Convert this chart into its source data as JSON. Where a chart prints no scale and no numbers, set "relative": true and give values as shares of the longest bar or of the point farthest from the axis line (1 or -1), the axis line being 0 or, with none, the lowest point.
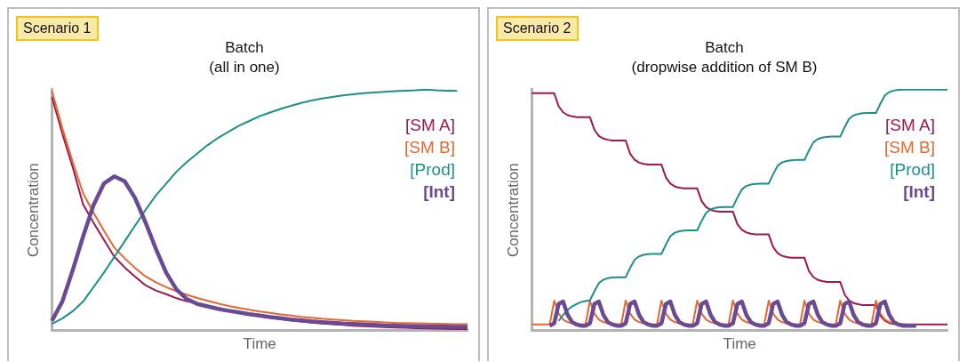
{
  "chart_data": [
    {
      "type": "line",
      "title": "Batch",
      "subtitle": "(all in one)",
      "xlabel": "Time",
      "ylabel": "Concentration",
      "annotations": [
        "Scenario 1"
      ],
      "relative": true,
      "legend": "right",
      "tick_labels": false,
      "marker": "none",
      "line_style": "solid",
      "categories": [
        null,
        null,
        null,
        null,
        null,
        null,
        null,
        null,
        null,
        null,
        null,
        null,
        null,
        null,
        null,
        null,
        null,
        null,
        null,
        null,
        null,
        null,
        null,
        null,
        null,
        null,
        null,
        null,
        null,
        null,
        null,
        null,
        null,
        null,
        null,
        null,
        null,
        null,
        null,
        null,
        null
      ],
      "series": [
        {
          "name": "[SM A]",
          "color": "#a0174a",
          "values": [
            0.97,
            0.818,
            0.678,
            0.524,
            0.448,
            0.377,
            0.307,
            0.262,
            0.224,
            0.188,
            0.166,
            0.151,
            0.134,
            0.121,
            0.113,
            0.1,
            0.09,
            0.082,
            0.074,
            0.066,
            0.059,
            0.053,
            0.047,
            0.042,
            0.037,
            0.033,
            0.029,
            0.026,
            0.023,
            0.02,
            0.018,
            0.016,
            0.014,
            0.012,
            0.011,
            0.01,
            0.009,
            0.008,
            0.007,
            0.006,
            0.006
          ]
        },
        {
          "name": "[SM B]",
          "color": "#e8662c",
          "values": [
            0.995,
            0.84,
            0.7,
            0.57,
            0.49,
            0.415,
            0.345,
            0.3,
            0.26,
            0.225,
            0.2,
            0.18,
            0.163,
            0.148,
            0.135,
            0.123,
            0.112,
            0.102,
            0.094,
            0.086,
            0.079,
            0.073,
            0.067,
            0.062,
            0.057,
            0.053,
            0.049,
            0.046,
            0.043,
            0.04,
            0.038,
            0.036,
            0.034,
            0.032,
            0.031,
            0.03,
            0.029,
            0.028,
            0.027,
            0.026,
            0.026
          ]
        },
        {
          "name": "[Prod]",
          "color": "#1a8f8c",
          "values": [
            0.028,
            0.05,
            0.08,
            0.12,
            0.18,
            0.24,
            0.305,
            0.37,
            0.435,
            0.5,
            0.56,
            0.61,
            0.66,
            0.7,
            0.735,
            0.77,
            0.8,
            0.825,
            0.85,
            0.87,
            0.89,
            0.905,
            0.92,
            0.933,
            0.945,
            0.955,
            0.963,
            0.97,
            0.976,
            0.981,
            0.985,
            0.988,
            0.991,
            0.994,
            0.996,
            0.997,
            1.0,
            0.997,
            0.996,
            0.995,
            null
          ]
        },
        {
          "name": "[Int]",
          "color": "#6a4a94",
          "values": [
            0.04,
            0.12,
            0.25,
            0.39,
            0.52,
            0.61,
            0.64,
            0.62,
            0.55,
            0.45,
            0.34,
            0.24,
            0.17,
            0.13,
            0.11,
            0.1,
            0.09,
            0.082,
            0.075,
            0.068,
            0.062,
            0.056,
            0.051,
            0.046,
            0.042,
            0.038,
            0.035,
            0.032,
            0.029,
            0.027,
            0.025,
            0.023,
            0.021,
            0.02,
            0.019,
            0.018,
            0.017,
            0.016,
            0.016,
            0.015,
            0.015
          ]
        }
      ]
    },
    {
      "type": "line",
      "title": "Batch",
      "subtitle": "(dropwise addition of SM B)",
      "xlabel": "Time",
      "ylabel": "Concentration",
      "annotations": [
        "Scenario 2"
      ],
      "relative": true,
      "legend": "right",
      "tick_labels": false,
      "marker": "none",
      "line_style": "solid",
      "categories": [
        null,
        null,
        null,
        null,
        null,
        null,
        null,
        null,
        null,
        null,
        null,
        null,
        null,
        null,
        null,
        null,
        null,
        null,
        null,
        null,
        null,
        null,
        null,
        null,
        null,
        null,
        null,
        null,
        null,
        null,
        null,
        null,
        null,
        null,
        null,
        null,
        null,
        null,
        null,
        null,
        null,
        null,
        null,
        null,
        null,
        null,
        null,
        null,
        null,
        null,
        null,
        null,
        null,
        null,
        null,
        null,
        null,
        null,
        null,
        null,
        null,
        null,
        null,
        null,
        null,
        null,
        null,
        null,
        null,
        null,
        null,
        null,
        null,
        null,
        null,
        null,
        null,
        null,
        null,
        null,
        null,
        null,
        null,
        null,
        null,
        null,
        null,
        null,
        null,
        null,
        null,
        null,
        null,
        null
      ],
      "series": [
        {
          "name": "[SM A]",
          "color": "#a0174a",
          "values": [
            0.985,
            0.985,
            0.985,
            0.985,
            0.985,
            0.985,
            0.931,
            0.906,
            0.894,
            0.889,
            0.886,
            0.886,
            0.886,
            0.886,
            0.833,
            0.808,
            0.797,
            0.792,
            0.789,
            0.789,
            0.789,
            0.789,
            0.734,
            0.709,
            0.697,
            0.692,
            0.689,
            0.689,
            0.689,
            0.689,
            0.635,
            0.61,
            0.598,
            0.593,
            0.59,
            0.59,
            0.59,
            0.59,
            0.537,
            0.512,
            0.501,
            0.496,
            0.493,
            0.493,
            0.493,
            0.493,
            0.441,
            0.418,
            0.407,
            0.402,
            0.399,
            0.399,
            0.399,
            0.399,
            0.346,
            0.321,
            0.31,
            0.305,
            0.302,
            0.302,
            0.302,
            0.302,
            0.247,
            0.222,
            0.21,
            0.205,
            0.202,
            0.202,
            0.202,
            0.202,
            0.149,
            0.125,
            0.114,
            0.109,
            0.106,
            0.106,
            0.106,
            0.106,
            0.061,
            0.041,
            0.031,
            0.027,
            0.025,
            0.025,
            0.025,
            0.025,
            0.025,
            0.025,
            0.025,
            0.025,
            0.025,
            0.025,
            0.025,
            0.025
          ]
        },
        {
          "name": "[SM B]",
          "color": "#e8662c",
          "values": [
            0.025,
            0.025,
            0.025,
            0.025,
            0.025,
            0.124,
            0.07,
            0.045,
            0.035,
            0.03,
            0.027,
            0.026,
            0.025,
            0.124,
            0.07,
            0.045,
            0.035,
            0.03,
            0.027,
            0.026,
            0.025,
            0.124,
            0.07,
            0.045,
            0.035,
            0.03,
            0.027,
            0.026,
            0.025,
            0.124,
            0.07,
            0.045,
            0.035,
            0.03,
            0.027,
            0.026,
            0.025,
            0.124,
            0.07,
            0.045,
            0.035,
            0.03,
            0.027,
            0.026,
            0.025,
            0.124,
            0.07,
            0.045,
            0.035,
            0.03,
            0.027,
            0.026,
            0.025,
            0.124,
            0.07,
            0.045,
            0.035,
            0.03,
            0.027,
            0.026,
            0.025,
            0.124,
            0.07,
            0.045,
            0.035,
            0.03,
            0.027,
            0.026,
            0.025,
            0.124,
            0.07,
            0.045,
            0.035,
            0.03,
            0.027,
            0.026,
            0.025,
            0.124,
            0.07,
            0.045,
            0.035,
            0.03,
            0.027,
            0.026,
            0.025,
            null,
            null,
            null,
            null,
            null,
            null,
            null,
            null,
            null
          ]
        },
        {
          "name": "[Prod]",
          "color": "#1a8f8c",
          "values": [
            null,
            null,
            null,
            null,
            null,
            null,
            0.04,
            0.065,
            0.085,
            0.1,
            0.11,
            0.118,
            0.122,
            0.125,
            0.163,
            0.197,
            0.211,
            0.217,
            0.22,
            0.221,
            0.221,
            0.221,
            0.26,
            0.294,
            0.308,
            0.314,
            0.317,
            0.318,
            0.318,
            0.318,
            0.357,
            0.392,
            0.406,
            0.412,
            0.415,
            0.416,
            0.416,
            0.416,
            0.455,
            0.489,
            0.503,
            0.509,
            0.512,
            0.513,
            0.513,
            0.513,
            0.552,
            0.586,
            0.6,
            0.606,
            0.609,
            0.61,
            0.61,
            0.61,
            0.649,
            0.684,
            0.698,
            0.704,
            0.707,
            0.708,
            0.708,
            0.708,
            0.747,
            0.781,
            0.795,
            0.801,
            0.804,
            0.805,
            0.805,
            0.805,
            0.844,
            0.879,
            0.893,
            0.899,
            0.902,
            0.903,
            0.903,
            0.903,
            0.942,
            0.976,
            0.99,
            0.996,
            0.999,
            1.0,
            1.0,
            1.0,
            1.0,
            1.0,
            1.0,
            1.0,
            1.0,
            1.0,
            1.0,
            1.0
          ]
        },
        {
          "name": "[Int]",
          "color": "#6a4a94",
          "values": [
            null,
            null,
            null,
            null,
            0.02,
            0.03,
            0.11,
            0.12,
            0.065,
            0.035,
            0.025,
            0.02,
            0.02,
            0.03,
            0.11,
            0.12,
            0.065,
            0.035,
            0.025,
            0.02,
            0.02,
            0.03,
            0.11,
            0.12,
            0.065,
            0.035,
            0.025,
            0.02,
            0.02,
            0.03,
            0.11,
            0.12,
            0.065,
            0.035,
            0.025,
            0.02,
            0.02,
            0.03,
            0.11,
            0.12,
            0.065,
            0.035,
            0.025,
            0.02,
            0.02,
            0.03,
            0.11,
            0.12,
            0.065,
            0.035,
            0.025,
            0.02,
            0.02,
            0.03,
            0.11,
            0.12,
            0.065,
            0.035,
            0.025,
            0.02,
            0.02,
            0.03,
            0.11,
            0.12,
            0.065,
            0.035,
            0.025,
            0.02,
            0.02,
            0.03,
            0.11,
            0.12,
            0.065,
            0.035,
            0.025,
            0.02,
            0.02,
            0.03,
            0.11,
            0.12,
            0.065,
            0.035,
            0.025,
            0.02,
            0.02,
            0.02,
            0.02,
            null,
            null,
            null,
            null,
            null,
            null,
            null
          ]
        }
      ]
    }
  ]
}
